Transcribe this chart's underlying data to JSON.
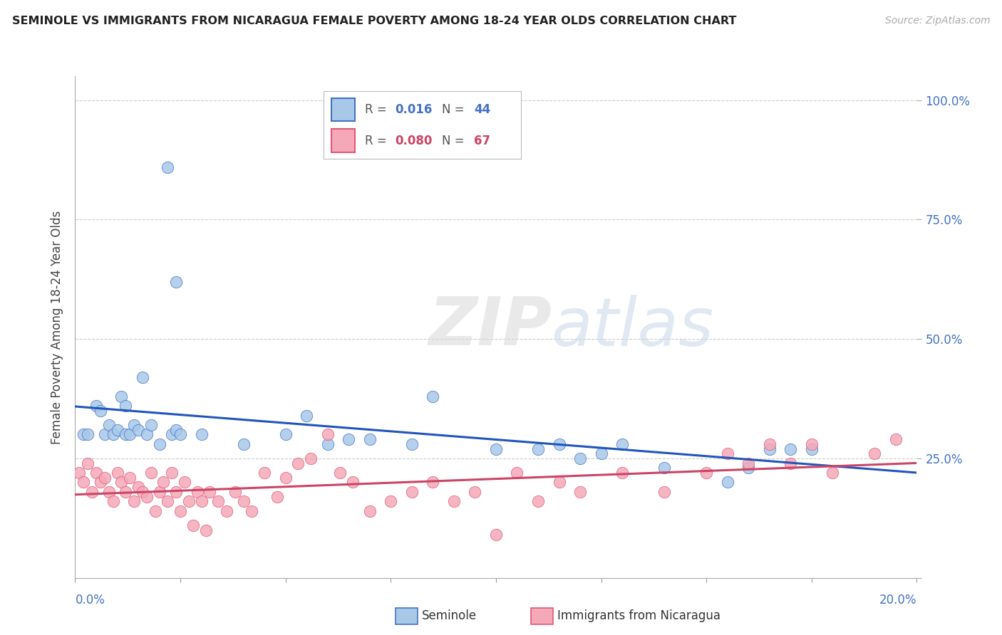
{
  "title": "SEMINOLE VS IMMIGRANTS FROM NICARAGUA FEMALE POVERTY AMONG 18-24 YEAR OLDS CORRELATION CHART",
  "source": "Source: ZipAtlas.com",
  "ylabel": "Female Poverty Among 18-24 Year Olds",
  "legend_R_sem": "0.016",
  "legend_N_sem": "44",
  "legend_R_nic": "0.080",
  "legend_N_nic": "67",
  "color_sem_fill": "#a8c8e8",
  "color_sem_edge": "#4472c4",
  "color_nic_fill": "#f4a8b8",
  "color_nic_edge": "#e05878",
  "color_line_sem": "#2255bb",
  "color_line_nic": "#cc4466",
  "color_blue_text": "#4472c4",
  "color_pink_text": "#cc4466",
  "watermark_zip": "ZIP",
  "watermark_atlas": "atlas",
  "bg_color": "#ffffff",
  "xlim": [
    0.0,
    0.2
  ],
  "ylim": [
    0.0,
    1.05
  ],
  "yticks": [
    0.0,
    0.25,
    0.5,
    0.75,
    1.0
  ],
  "ytick_labels": [
    "",
    "25.0%",
    "50.0%",
    "75.0%",
    "100.0%"
  ],
  "seminole_x": [
    0.002,
    0.003,
    0.005,
    0.006,
    0.007,
    0.008,
    0.009,
    0.01,
    0.011,
    0.012,
    0.012,
    0.013,
    0.014,
    0.015,
    0.016,
    0.017,
    0.018,
    0.02,
    0.022,
    0.023,
    0.024,
    0.024,
    0.025,
    0.03,
    0.04,
    0.05,
    0.055,
    0.06,
    0.065,
    0.07,
    0.08,
    0.085,
    0.1,
    0.11,
    0.115,
    0.12,
    0.125,
    0.13,
    0.14,
    0.155,
    0.16,
    0.165,
    0.17,
    0.175
  ],
  "seminole_y": [
    0.3,
    0.3,
    0.36,
    0.35,
    0.3,
    0.32,
    0.3,
    0.31,
    0.38,
    0.3,
    0.36,
    0.3,
    0.32,
    0.31,
    0.42,
    0.3,
    0.32,
    0.28,
    0.86,
    0.3,
    0.62,
    0.31,
    0.3,
    0.3,
    0.28,
    0.3,
    0.34,
    0.28,
    0.29,
    0.29,
    0.28,
    0.38,
    0.27,
    0.27,
    0.28,
    0.25,
    0.26,
    0.28,
    0.23,
    0.2,
    0.23,
    0.27,
    0.27,
    0.27
  ],
  "nicaragua_x": [
    0.001,
    0.002,
    0.003,
    0.004,
    0.005,
    0.006,
    0.007,
    0.008,
    0.009,
    0.01,
    0.011,
    0.012,
    0.013,
    0.014,
    0.015,
    0.016,
    0.017,
    0.018,
    0.019,
    0.02,
    0.021,
    0.022,
    0.023,
    0.024,
    0.025,
    0.026,
    0.027,
    0.028,
    0.029,
    0.03,
    0.031,
    0.032,
    0.034,
    0.036,
    0.038,
    0.04,
    0.042,
    0.045,
    0.048,
    0.05,
    0.053,
    0.056,
    0.06,
    0.063,
    0.066,
    0.07,
    0.075,
    0.08,
    0.085,
    0.09,
    0.095,
    0.1,
    0.105,
    0.11,
    0.115,
    0.12,
    0.13,
    0.14,
    0.15,
    0.155,
    0.16,
    0.165,
    0.17,
    0.175,
    0.18,
    0.19,
    0.195
  ],
  "nicaragua_y": [
    0.22,
    0.2,
    0.24,
    0.18,
    0.22,
    0.2,
    0.21,
    0.18,
    0.16,
    0.22,
    0.2,
    0.18,
    0.21,
    0.16,
    0.19,
    0.18,
    0.17,
    0.22,
    0.14,
    0.18,
    0.2,
    0.16,
    0.22,
    0.18,
    0.14,
    0.2,
    0.16,
    0.11,
    0.18,
    0.16,
    0.1,
    0.18,
    0.16,
    0.14,
    0.18,
    0.16,
    0.14,
    0.22,
    0.17,
    0.21,
    0.24,
    0.25,
    0.3,
    0.22,
    0.2,
    0.14,
    0.16,
    0.18,
    0.2,
    0.16,
    0.18,
    0.09,
    0.22,
    0.16,
    0.2,
    0.18,
    0.22,
    0.18,
    0.22,
    0.26,
    0.24,
    0.28,
    0.24,
    0.28,
    0.22,
    0.26,
    0.29
  ]
}
